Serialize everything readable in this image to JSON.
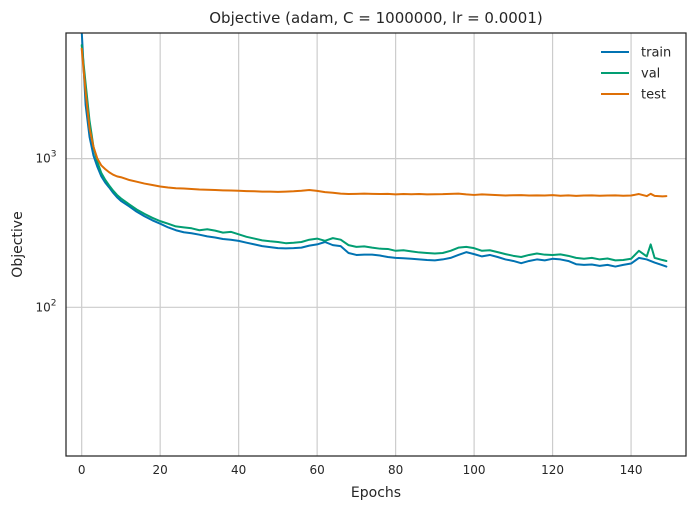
{
  "chart_data": {
    "type": "line",
    "title": "Objective (adam, C = 1000000, lr = 0.0001)",
    "xlabel": "Epochs",
    "ylabel": "Objective",
    "xlim": [
      -4,
      154
    ],
    "ylim": [
      10,
      7000
    ],
    "yscale": "log",
    "xticks": [
      0,
      20,
      40,
      60,
      80,
      100,
      120,
      140
    ],
    "xtick_labels": [
      "0",
      "20",
      "40",
      "60",
      "80",
      "100",
      "120",
      "140"
    ],
    "yticks": [
      100,
      1000
    ],
    "ytick_labels": [
      {
        "base": "10",
        "exp": "2"
      },
      {
        "base": "10",
        "exp": "3"
      }
    ],
    "grid": true,
    "legend_position": "top-right",
    "series": [
      {
        "name": "train",
        "color": "#0173b2",
        "points": [
          [
            0,
            7200
          ],
          [
            1,
            2300
          ],
          [
            2,
            1400
          ],
          [
            3,
            1050
          ],
          [
            4,
            880
          ],
          [
            5,
            760
          ],
          [
            6,
            690
          ],
          [
            7,
            640
          ],
          [
            8,
            590
          ],
          [
            9,
            550
          ],
          [
            10,
            520
          ],
          [
            12,
            480
          ],
          [
            14,
            440
          ],
          [
            16,
            410
          ],
          [
            18,
            385
          ],
          [
            20,
            365
          ],
          [
            22,
            345
          ],
          [
            24,
            330
          ],
          [
            26,
            320
          ],
          [
            28,
            315
          ],
          [
            30,
            308
          ],
          [
            32,
            300
          ],
          [
            34,
            295
          ],
          [
            36,
            288
          ],
          [
            38,
            285
          ],
          [
            40,
            280
          ],
          [
            42,
            272
          ],
          [
            44,
            265
          ],
          [
            46,
            258
          ],
          [
            48,
            254
          ],
          [
            50,
            250
          ],
          [
            52,
            249
          ],
          [
            54,
            250
          ],
          [
            56,
            252
          ],
          [
            58,
            260
          ],
          [
            60,
            265
          ],
          [
            62,
            275
          ],
          [
            64,
            262
          ],
          [
            66,
            258
          ],
          [
            68,
            232
          ],
          [
            70,
            225
          ],
          [
            72,
            226
          ],
          [
            74,
            226
          ],
          [
            76,
            223
          ],
          [
            78,
            218
          ],
          [
            80,
            215
          ],
          [
            82,
            214
          ],
          [
            84,
            212
          ],
          [
            86,
            210
          ],
          [
            88,
            208
          ],
          [
            90,
            207
          ],
          [
            92,
            210
          ],
          [
            94,
            215
          ],
          [
            96,
            225
          ],
          [
            98,
            235
          ],
          [
            100,
            228
          ],
          [
            102,
            220
          ],
          [
            104,
            225
          ],
          [
            106,
            218
          ],
          [
            108,
            210
          ],
          [
            110,
            205
          ],
          [
            112,
            198
          ],
          [
            114,
            205
          ],
          [
            116,
            210
          ],
          [
            118,
            207
          ],
          [
            120,
            212
          ],
          [
            122,
            210
          ],
          [
            124,
            205
          ],
          [
            126,
            195
          ],
          [
            128,
            193
          ],
          [
            130,
            194
          ],
          [
            132,
            190
          ],
          [
            134,
            193
          ],
          [
            136,
            188
          ],
          [
            138,
            193
          ],
          [
            140,
            197
          ],
          [
            142,
            215
          ],
          [
            144,
            210
          ],
          [
            146,
            200
          ],
          [
            148,
            192
          ],
          [
            149,
            188
          ]
        ]
      },
      {
        "name": "val",
        "color": "#029e73",
        "points": [
          [
            0,
            5800
          ],
          [
            1,
            3200
          ],
          [
            2,
            1800
          ],
          [
            3,
            1200
          ],
          [
            4,
            950
          ],
          [
            5,
            800
          ],
          [
            6,
            720
          ],
          [
            7,
            660
          ],
          [
            8,
            610
          ],
          [
            9,
            570
          ],
          [
            10,
            540
          ],
          [
            12,
            495
          ],
          [
            14,
            455
          ],
          [
            16,
            425
          ],
          [
            18,
            400
          ],
          [
            20,
            380
          ],
          [
            22,
            365
          ],
          [
            24,
            350
          ],
          [
            26,
            345
          ],
          [
            28,
            340
          ],
          [
            30,
            330
          ],
          [
            32,
            335
          ],
          [
            34,
            328
          ],
          [
            36,
            318
          ],
          [
            38,
            322
          ],
          [
            40,
            310
          ],
          [
            42,
            298
          ],
          [
            44,
            290
          ],
          [
            46,
            282
          ],
          [
            48,
            278
          ],
          [
            50,
            275
          ],
          [
            52,
            270
          ],
          [
            54,
            272
          ],
          [
            56,
            275
          ],
          [
            58,
            285
          ],
          [
            60,
            290
          ],
          [
            62,
            280
          ],
          [
            64,
            292
          ],
          [
            66,
            285
          ],
          [
            68,
            262
          ],
          [
            70,
            255
          ],
          [
            72,
            257
          ],
          [
            74,
            252
          ],
          [
            76,
            248
          ],
          [
            78,
            247
          ],
          [
            80,
            240
          ],
          [
            82,
            242
          ],
          [
            84,
            238
          ],
          [
            86,
            234
          ],
          [
            88,
            232
          ],
          [
            90,
            230
          ],
          [
            92,
            232
          ],
          [
            94,
            240
          ],
          [
            96,
            252
          ],
          [
            98,
            255
          ],
          [
            100,
            250
          ],
          [
            102,
            240
          ],
          [
            104,
            242
          ],
          [
            106,
            235
          ],
          [
            108,
            228
          ],
          [
            110,
            222
          ],
          [
            112,
            218
          ],
          [
            114,
            225
          ],
          [
            116,
            230
          ],
          [
            118,
            226
          ],
          [
            120,
            225
          ],
          [
            122,
            227
          ],
          [
            124,
            222
          ],
          [
            126,
            215
          ],
          [
            128,
            212
          ],
          [
            130,
            215
          ],
          [
            132,
            210
          ],
          [
            134,
            213
          ],
          [
            136,
            207
          ],
          [
            138,
            208
          ],
          [
            140,
            212
          ],
          [
            142,
            240
          ],
          [
            144,
            220
          ],
          [
            145,
            265
          ],
          [
            146,
            215
          ],
          [
            148,
            208
          ],
          [
            149,
            205
          ]
        ]
      },
      {
        "name": "test",
        "color": "#de6f06",
        "points": [
          [
            0,
            5500
          ],
          [
            1,
            2800
          ],
          [
            2,
            1600
          ],
          [
            3,
            1200
          ],
          [
            4,
            1000
          ],
          [
            5,
            900
          ],
          [
            6,
            850
          ],
          [
            7,
            810
          ],
          [
            8,
            780
          ],
          [
            9,
            760
          ],
          [
            10,
            750
          ],
          [
            12,
            720
          ],
          [
            14,
            700
          ],
          [
            16,
            680
          ],
          [
            18,
            665
          ],
          [
            20,
            650
          ],
          [
            22,
            640
          ],
          [
            24,
            632
          ],
          [
            26,
            630
          ],
          [
            28,
            625
          ],
          [
            30,
            620
          ],
          [
            32,
            618
          ],
          [
            34,
            615
          ],
          [
            36,
            612
          ],
          [
            38,
            610
          ],
          [
            40,
            608
          ],
          [
            42,
            605
          ],
          [
            44,
            603
          ],
          [
            46,
            600
          ],
          [
            48,
            600
          ],
          [
            50,
            598
          ],
          [
            52,
            600
          ],
          [
            54,
            603
          ],
          [
            56,
            608
          ],
          [
            58,
            615
          ],
          [
            60,
            607
          ],
          [
            62,
            595
          ],
          [
            64,
            590
          ],
          [
            66,
            582
          ],
          [
            68,
            578
          ],
          [
            70,
            580
          ],
          [
            72,
            582
          ],
          [
            74,
            580
          ],
          [
            76,
            578
          ],
          [
            78,
            580
          ],
          [
            80,
            575
          ],
          [
            82,
            578
          ],
          [
            84,
            576
          ],
          [
            86,
            578
          ],
          [
            88,
            575
          ],
          [
            90,
            576
          ],
          [
            92,
            577
          ],
          [
            94,
            580
          ],
          [
            96,
            582
          ],
          [
            98,
            575
          ],
          [
            100,
            570
          ],
          [
            102,
            575
          ],
          [
            104,
            572
          ],
          [
            106,
            568
          ],
          [
            108,
            565
          ],
          [
            110,
            567
          ],
          [
            112,
            568
          ],
          [
            114,
            565
          ],
          [
            116,
            566
          ],
          [
            118,
            565
          ],
          [
            120,
            568
          ],
          [
            122,
            563
          ],
          [
            124,
            566
          ],
          [
            126,
            562
          ],
          [
            128,
            565
          ],
          [
            130,
            566
          ],
          [
            132,
            563
          ],
          [
            134,
            565
          ],
          [
            136,
            566
          ],
          [
            138,
            563
          ],
          [
            140,
            565
          ],
          [
            142,
            578
          ],
          [
            144,
            560
          ],
          [
            145,
            580
          ],
          [
            146,
            562
          ],
          [
            148,
            558
          ],
          [
            149,
            560
          ]
        ]
      }
    ]
  }
}
